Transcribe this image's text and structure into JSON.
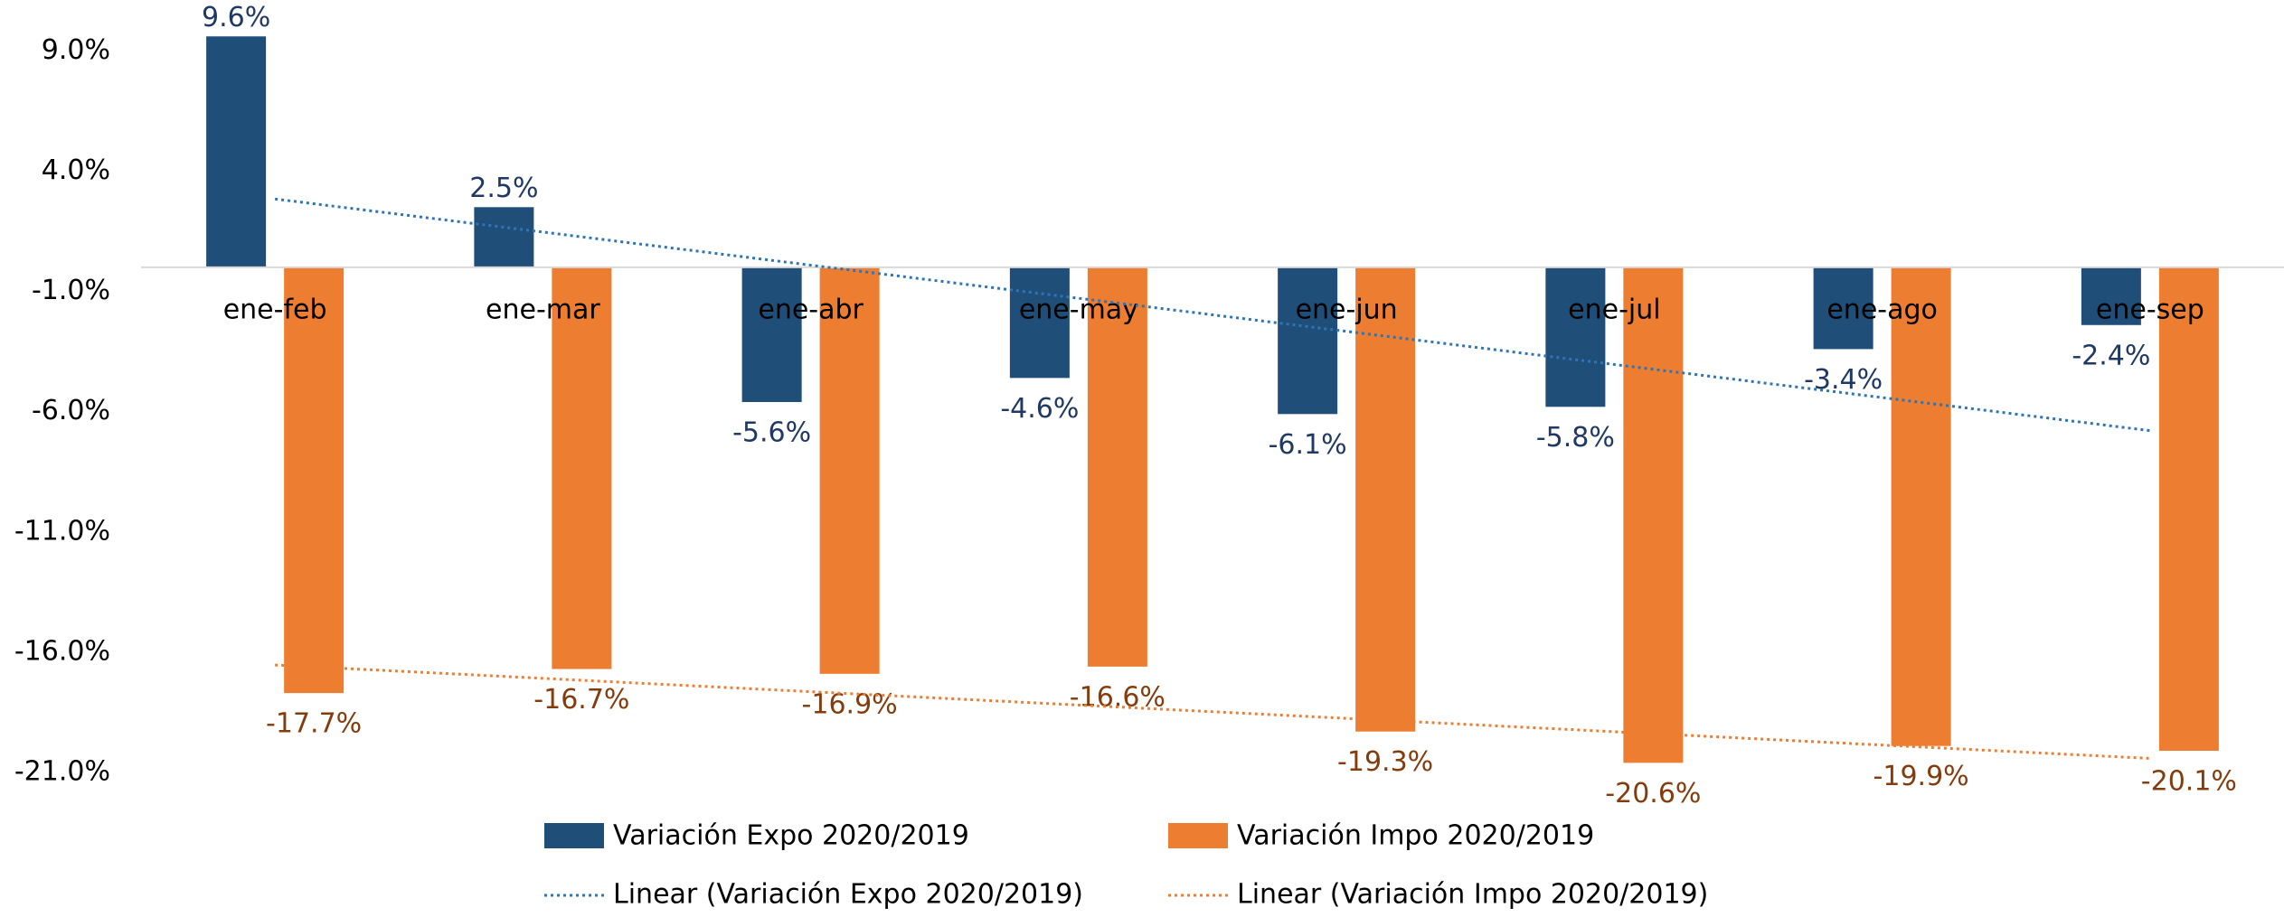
{
  "chart_data": {
    "type": "bar",
    "categories": [
      "ene-feb",
      "ene-mar",
      "ene-abr",
      "ene-may",
      "ene-jun",
      "ene-jul",
      "ene-ago",
      "ene-sep"
    ],
    "series": [
      {
        "name": "Variación Expo 2020/2019",
        "color": "#1f4e79",
        "label_color": "#1f3864",
        "values": [
          9.6,
          2.5,
          -5.6,
          -4.6,
          -6.1,
          -5.8,
          -3.4,
          -2.4
        ],
        "value_labels": [
          "9.6%",
          "2.5%",
          "-5.6%",
          "-4.6%",
          "-6.1%",
          "-5.8%",
          "-3.4%",
          "-2.4%"
        ]
      },
      {
        "name": "Variación Impo 2020/2019",
        "color": "#ed7d31",
        "label_color": "#843c0c",
        "values": [
          -17.7,
          -16.7,
          -16.9,
          -16.6,
          -19.3,
          -20.6,
          -19.9,
          -20.1
        ],
        "value_labels": [
          "-17.7%",
          "-16.7%",
          "-16.9%",
          "-16.6%",
          "-19.3%",
          "-20.6%",
          "-19.9%",
          "-20.1%"
        ]
      }
    ],
    "trendlines": [
      {
        "name": "Linear (Variación Expo 2020/2019)",
        "series": 0,
        "color": "#2e75b6"
      },
      {
        "name": "Linear (Variación Impo 2020/2019)",
        "series": 1,
        "color": "#ed7d31"
      }
    ],
    "ylim": [
      -21,
      11
    ],
    "yticks": [
      {
        "value": 9,
        "label": "9.0%"
      },
      {
        "value": 4,
        "label": "4.0%"
      },
      {
        "value": -1,
        "label": "-1.0%"
      },
      {
        "value": -6,
        "label": "-6.0%"
      },
      {
        "value": -11,
        "label": "-11.0%"
      },
      {
        "value": -16,
        "label": "-16.0%"
      },
      {
        "value": -21,
        "label": "-21.0%"
      }
    ],
    "grid": false,
    "legend": "bottom"
  }
}
